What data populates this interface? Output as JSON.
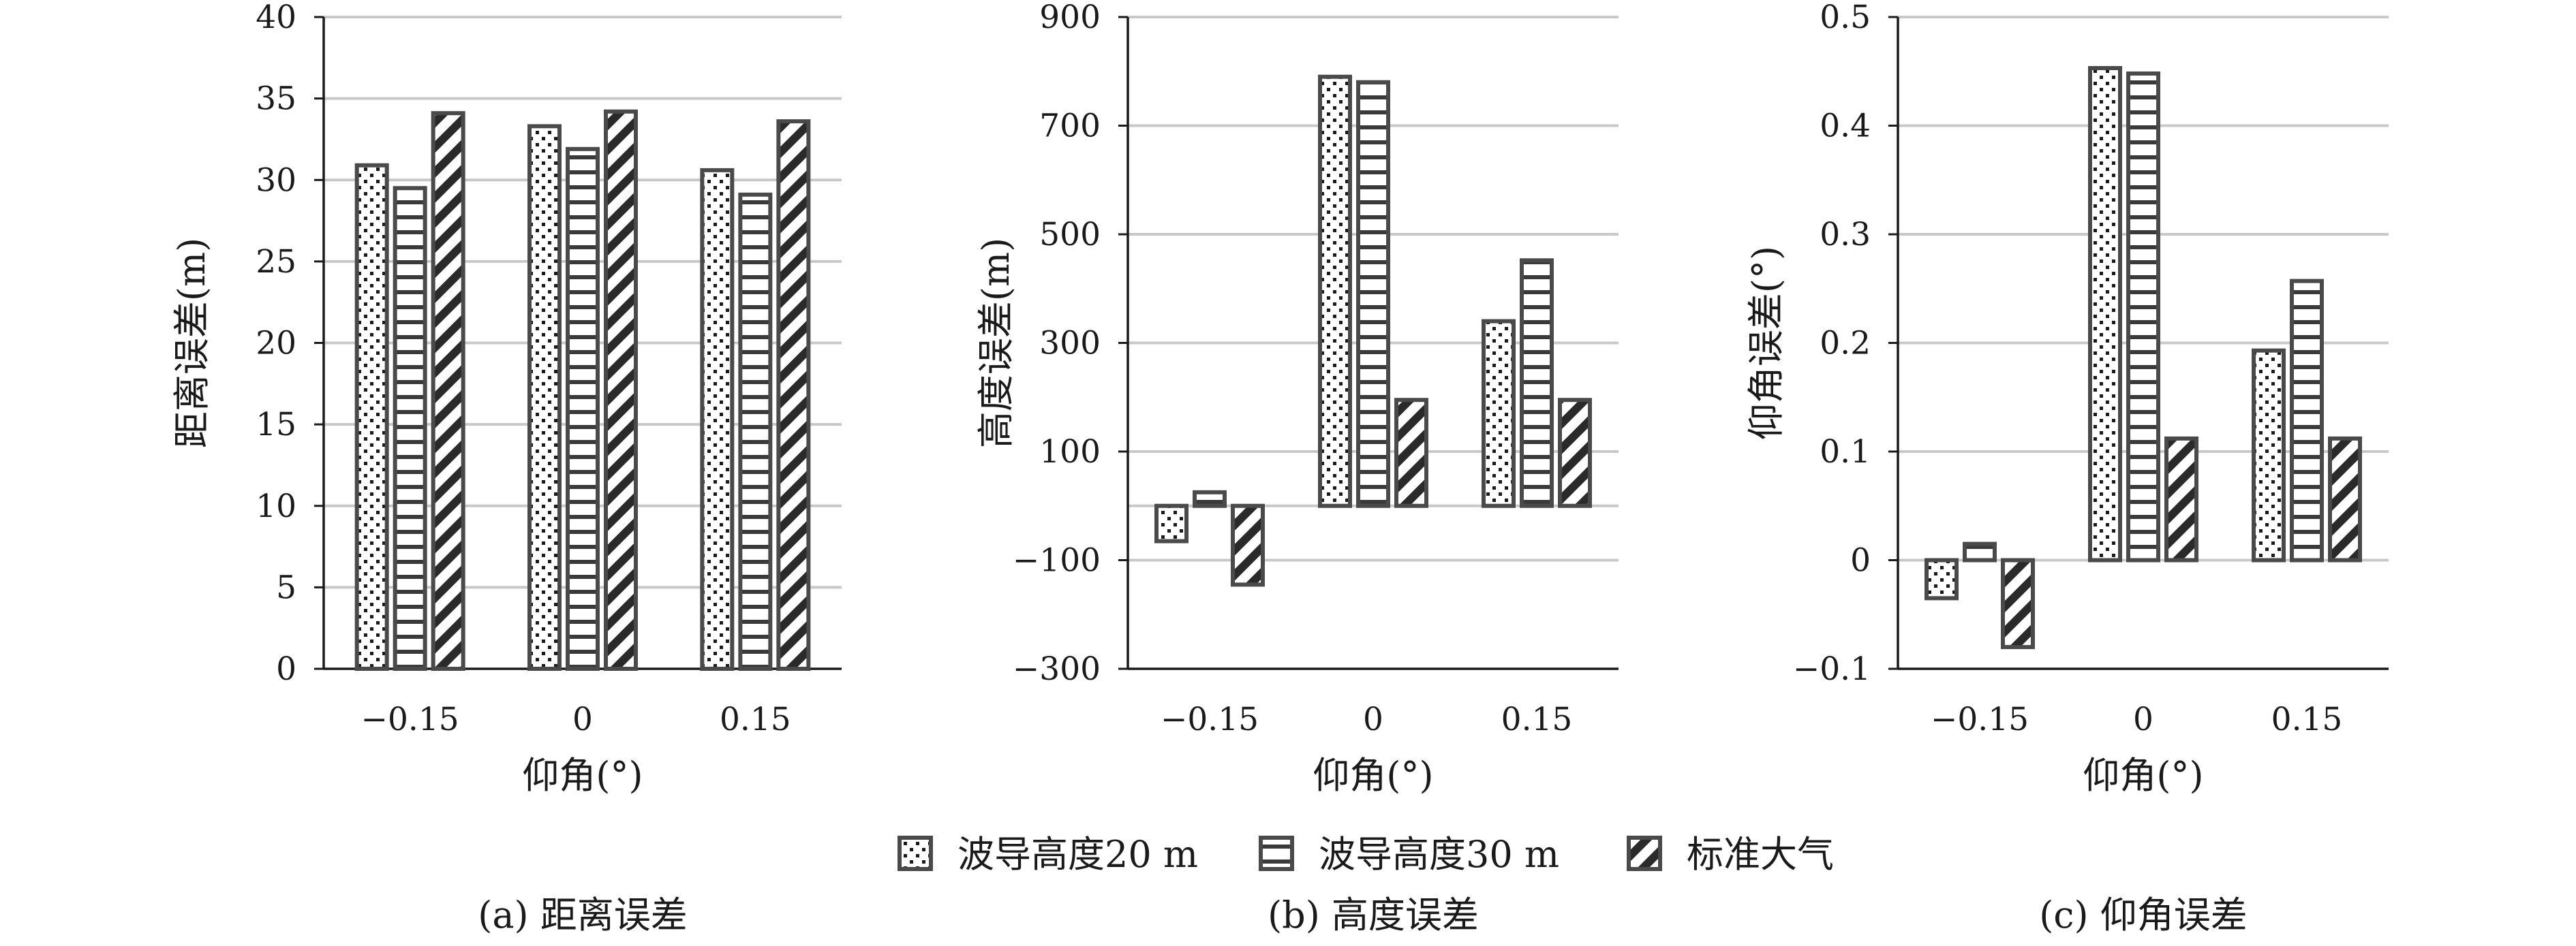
{
  "legend": [
    {
      "name": "波导高度20 m",
      "pattern": "dots"
    },
    {
      "name": "波导高度30 m",
      "pattern": "hlines"
    },
    {
      "name": "标准大气",
      "pattern": "diag"
    }
  ],
  "colors": {
    "bar_border": "#4a4a4a",
    "grid": "#c8c8c8",
    "axis": "#1a1a1a"
  },
  "chart_data": [
    {
      "type": "bar",
      "caption": "(a) 距离误差",
      "xlabel": "仰角(°)",
      "ylabel": "距离误差(m)",
      "categories": [
        "-0.15",
        "0",
        "0.15"
      ],
      "ylim": [
        0,
        40
      ],
      "yticks": [
        0,
        5,
        10,
        15,
        20,
        25,
        30,
        35,
        40
      ],
      "ytick_labels": [
        "0",
        "5",
        "10",
        "15",
        "20",
        "25",
        "30",
        "35",
        "40"
      ],
      "grid": true,
      "legend_position": "bottom",
      "series": [
        {
          "name": "波导高度20 m",
          "values": [
            30.9,
            33.3,
            30.6
          ]
        },
        {
          "name": "波导高度30 m",
          "values": [
            29.5,
            31.9,
            29.1
          ]
        },
        {
          "name": "标准大气",
          "values": [
            34.1,
            34.2,
            33.6
          ]
        }
      ]
    },
    {
      "type": "bar",
      "caption": "(b) 高度误差",
      "xlabel": "仰角(°)",
      "ylabel": "高度误差(m)",
      "categories": [
        "-0.15",
        "0",
        "0.15"
      ],
      "ylim": [
        -300,
        900
      ],
      "yticks": [
        -300,
        -100,
        100,
        300,
        500,
        700,
        900
      ],
      "ytick_labels": [
        "−300",
        "−100",
        "100",
        "300",
        "500",
        "700",
        "900"
      ],
      "grid": true,
      "legend_position": "bottom",
      "series": [
        {
          "name": "波导高度20 m",
          "values": [
            -65,
            790,
            340
          ]
        },
        {
          "name": "波导高度30 m",
          "values": [
            25,
            780,
            452
          ]
        },
        {
          "name": "标准大气",
          "values": [
            -145,
            195,
            195
          ]
        }
      ]
    },
    {
      "type": "bar",
      "caption": "(c) 仰角误差",
      "xlabel": "仰角(°)",
      "ylabel": "仰角误差(°)",
      "categories": [
        "-0.15",
        "0",
        "0.15"
      ],
      "ylim": [
        -0.1,
        0.5
      ],
      "yticks": [
        -0.1,
        0,
        0.1,
        0.2,
        0.3,
        0.4,
        0.5
      ],
      "ytick_labels": [
        "−0.1",
        "0",
        "0.1",
        "0.2",
        "0.3",
        "0.4",
        "0.5"
      ],
      "grid": true,
      "legend_position": "bottom",
      "series": [
        {
          "name": "波导高度20 m",
          "values": [
            -0.035,
            0.453,
            0.193
          ]
        },
        {
          "name": "波导高度30 m",
          "values": [
            0.015,
            0.448,
            0.257
          ]
        },
        {
          "name": "标准大气",
          "values": [
            -0.08,
            0.112,
            0.112
          ]
        }
      ]
    }
  ]
}
